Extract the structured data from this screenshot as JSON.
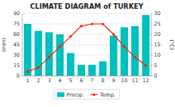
{
  "chart_data": {
    "type": "bar",
    "title": "CLIMATE DIAGRAM of TURKEY",
    "categories": [
      "1",
      "2",
      "3",
      "4",
      "5",
      "6",
      "7",
      "8",
      "9",
      "10",
      "11",
      "12"
    ],
    "series": [
      {
        "name": "Precip.",
        "type": "bar",
        "color": "#00BFBF",
        "values": [
          75,
          65,
          63,
          60,
          33,
          16,
          16,
          21,
          58,
          70,
          72,
          88
        ]
      },
      {
        "name": "Temp.",
        "type": "line",
        "color": "#FF2200",
        "marker": "circle",
        "axis": "y2",
        "values": [
          2,
          4,
          9,
          14,
          19,
          24,
          25,
          25,
          20,
          14,
          9,
          5
        ]
      }
    ],
    "y_label": "(mm)",
    "y2_label": "(°C)",
    "ylim": [
      0,
      90
    ],
    "yticks": [
      0,
      15,
      30,
      45,
      60,
      75,
      90
    ],
    "y2lim": [
      0,
      30
    ],
    "y2ticks": [
      0,
      5,
      10,
      15,
      20,
      25,
      30
    ],
    "grid": true,
    "legend": "bottom"
  }
}
